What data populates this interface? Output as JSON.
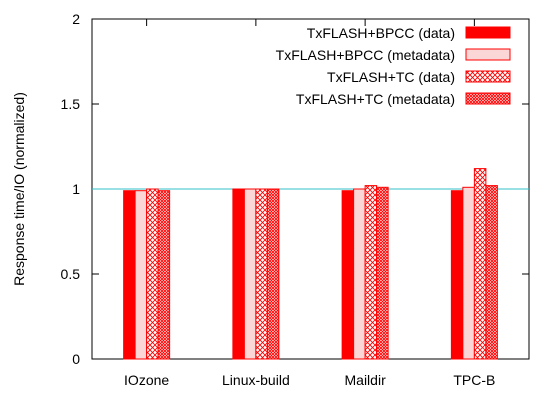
{
  "chart_data": {
    "type": "bar",
    "title": "",
    "xlabel": "",
    "ylabel": "Response time/IO (normalized)",
    "ylim": [
      0,
      2
    ],
    "yticks": [
      "0",
      "0.5",
      "1",
      "1.5",
      "2"
    ],
    "categories": [
      "IOzone",
      "Linux-build",
      "Maildir",
      "TPC-B"
    ],
    "reference_line": {
      "value": 1,
      "color": "#33c0c8"
    },
    "legend_position": "top-right",
    "grid": false,
    "series": [
      {
        "name": "TxFLASH+BPCC (data)",
        "values": [
          0.99,
          1.0,
          0.99,
          0.99
        ],
        "pattern": "solid",
        "color": "#ff0000"
      },
      {
        "name": "TxFLASH+BPCC (metadata)",
        "values": [
          0.99,
          1.0,
          1.0,
          1.01
        ],
        "pattern": "light",
        "color": "#ff0000"
      },
      {
        "name": "TxFLASH+TC (data)",
        "values": [
          1.0,
          1.0,
          1.02,
          1.12
        ],
        "pattern": "crosshatch",
        "color": "#ff0000"
      },
      {
        "name": "TxFLASH+TC (metadata)",
        "values": [
          0.99,
          1.0,
          1.01,
          1.02
        ],
        "pattern": "dense",
        "color": "#ff0000"
      }
    ]
  }
}
